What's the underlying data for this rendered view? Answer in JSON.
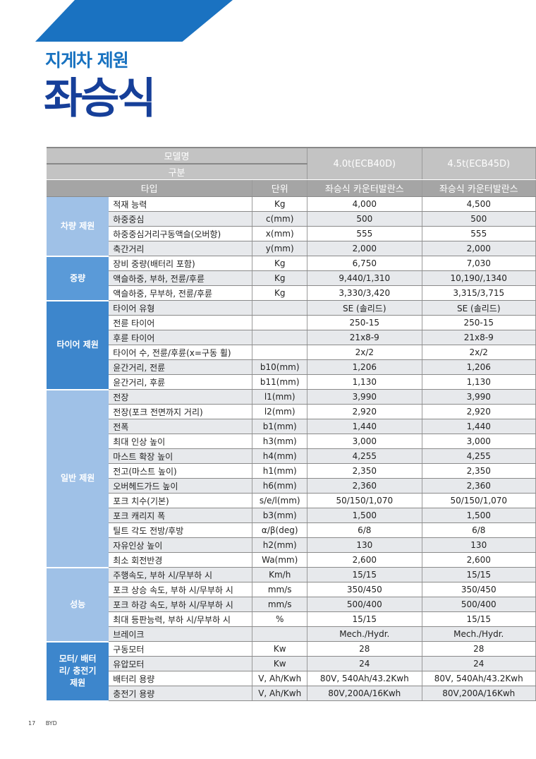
{
  "header": {
    "subtitle": "지게차 제원",
    "title": "좌승식"
  },
  "colors": {
    "banner": "#1a72c1",
    "title": "#163f99",
    "group_light": "#9fc1e7",
    "group_medium": "#5a9ad8",
    "group_dark": "#3d86cc"
  },
  "table": {
    "header": {
      "model_label": "모델명",
      "category_label": "구분",
      "type_label": "타입",
      "unit_label": "단위",
      "models": [
        "4.0t(ECB40D)",
        "4.5t(ECB45D)"
      ],
      "types": [
        "좌승식 카운터발란스",
        "좌승식 카운터발란스"
      ]
    },
    "groups": [
      {
        "name": "차량 제원",
        "shade": "light",
        "rows": [
          {
            "item": "적재 능력",
            "unit": "Kg",
            "values": [
              "4,000",
              "4,500"
            ]
          },
          {
            "item": "하중중심",
            "unit": "c(mm)",
            "values": [
              "500",
              "500"
            ]
          },
          {
            "item": "하중중심거리구동액슬(오버항)",
            "unit": "x(mm)",
            "values": [
              "555",
              "555"
            ]
          },
          {
            "item": "축간거리",
            "unit": "y(mm)",
            "values": [
              "2,000",
              "2,000"
            ]
          }
        ]
      },
      {
        "name": "중량",
        "shade": "medium",
        "rows": [
          {
            "item": "장비 중량(배터리 포함)",
            "unit": "Kg",
            "values": [
              "6,750",
              "7,030"
            ]
          },
          {
            "item": "액슬하중, 부하, 전륜/후륜",
            "unit": "Kg",
            "values": [
              "9,440/1,310",
              "10,190/,1340"
            ]
          },
          {
            "item": "액슬하중, 무부하, 전륜/후륜",
            "unit": "Kg",
            "values": [
              "3,330/3,420",
              "3,315/3,715"
            ]
          }
        ]
      },
      {
        "name": "타이어 제원",
        "shade": "dark",
        "rows": [
          {
            "item": "타이어 유형",
            "unit": "",
            "values": [
              "SE (솔리드)",
              "SE (솔리드)"
            ]
          },
          {
            "item": "전륜 타이어",
            "unit": "",
            "values": [
              "250-15",
              "250-15"
            ]
          },
          {
            "item": "후륜 타이어",
            "unit": "",
            "values": [
              "21x8-9",
              "21x8-9"
            ]
          },
          {
            "item": "타이어 수, 전륜/후륜(x=구동 휠)",
            "unit": "",
            "values": [
              "2x/2",
              "2x/2"
            ]
          },
          {
            "item": "윤간거리, 전륜",
            "unit": "b10(mm)",
            "values": [
              "1,206",
              "1,206"
            ]
          },
          {
            "item": "윤간거리, 후륜",
            "unit": "b11(mm)",
            "values": [
              "1,130",
              "1,130"
            ]
          }
        ]
      },
      {
        "name": "일반 제원",
        "shade": "light",
        "rows": [
          {
            "item": "전장",
            "unit": "l1(mm)",
            "values": [
              "3,990",
              "3,990"
            ]
          },
          {
            "item": "전장(포크 전면까지 거리)",
            "unit": "l2(mm)",
            "values": [
              "2,920",
              "2,920"
            ]
          },
          {
            "item": "전폭",
            "unit": "b1(mm)",
            "values": [
              "1,440",
              "1,440"
            ]
          },
          {
            "item": "최대 인상 높이",
            "unit": "h3(mm)",
            "values": [
              "3,000",
              "3,000"
            ]
          },
          {
            "item": "마스트 확장 높이",
            "unit": "h4(mm)",
            "values": [
              "4,255",
              "4,255"
            ]
          },
          {
            "item": "전고(마스트 높이)",
            "unit": "h1(mm)",
            "values": [
              "2,350",
              "2,350"
            ]
          },
          {
            "item": "오버헤드가드 높이",
            "unit": "h6(mm)",
            "values": [
              "2,360",
              "2,360"
            ]
          },
          {
            "item": "포크 치수(기본)",
            "unit": "s/e/l(mm)",
            "values": [
              "50/150/1,070",
              "50/150/1,070"
            ]
          },
          {
            "item": "포크 캐리지 폭",
            "unit": "b3(mm)",
            "values": [
              "1,500",
              "1,500"
            ]
          },
          {
            "item": "틸트 각도 전방/후방",
            "unit": "α/β(deg)",
            "values": [
              "6/8",
              "6/8"
            ]
          },
          {
            "item": "자유인상 높이",
            "unit": "h2(mm)",
            "values": [
              "130",
              "130"
            ]
          },
          {
            "item": "최소 회전반경",
            "unit": "Wa(mm)",
            "values": [
              "2,600",
              "2,600"
            ]
          }
        ]
      },
      {
        "name": "성능",
        "shade": "light",
        "rows": [
          {
            "item": "주행속도, 부하 시/무부하 시",
            "unit": "Km/h",
            "values": [
              "15/15",
              "15/15"
            ]
          },
          {
            "item": "포크 상승 속도, 부하 시/무부하 시",
            "unit": "mm/s",
            "values": [
              "350/450",
              "350/450"
            ]
          },
          {
            "item": "포크 하강 속도, 부하 시/무부하 시",
            "unit": "mm/s",
            "values": [
              "500/400",
              "500/400"
            ]
          },
          {
            "item": "최대 등판능력, 부하 시/무부하 시",
            "unit": "%",
            "values": [
              "15/15",
              "15/15"
            ]
          },
          {
            "item": "브레이크",
            "unit": "",
            "values": [
              "Mech./Hydr.",
              "Mech./Hydr."
            ]
          }
        ]
      },
      {
        "name": "모터/ 배터리/ 충전기 제원",
        "shade": "dark",
        "rows": [
          {
            "item": "구동모터",
            "unit": "Kw",
            "values": [
              "28",
              "28"
            ]
          },
          {
            "item": "유압모터",
            "unit": "Kw",
            "values": [
              "24",
              "24"
            ]
          },
          {
            "item": "배터리 용량",
            "unit": "V, Ah/Kwh",
            "values": [
              "80V, 540Ah/43.2Kwh",
              "80V, 540Ah/43.2Kwh"
            ]
          },
          {
            "item": "충전기 용량",
            "unit": "V, Ah/Kwh",
            "values": [
              "80V,200A/16Kwh",
              "80V,200A/16Kwh"
            ]
          }
        ]
      }
    ]
  },
  "footer": {
    "page": "17",
    "brand": "BYD"
  }
}
